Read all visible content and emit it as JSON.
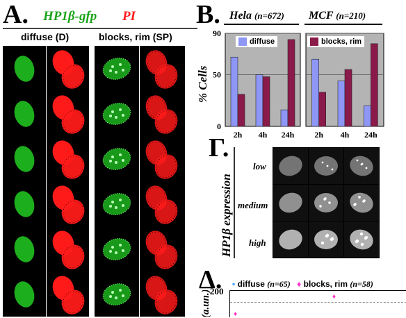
{
  "panelA": {
    "letter": "A.",
    "title_green": "HP1β-gfp",
    "title_red": "PI",
    "col1_label": "diffuse (D)",
    "col2_label": "blocks, rim (SP)",
    "rows": 6,
    "colors": {
      "green": "#22cc22",
      "red": "#ff1a1a"
    }
  },
  "panelB": {
    "letter": "B.",
    "hela_title": "Hela",
    "hela_n": "(n=672)",
    "mcf_title": "MCF",
    "mcf_n": "(n=210)",
    "legend_diffuse": "diffuse",
    "legend_blocks": "blocks, rim",
    "ylabel": "% Cells",
    "yticks": [
      "90",
      "50",
      "0"
    ],
    "xticks": [
      "2h",
      "4h",
      "24h"
    ]
  },
  "chart_data": [
    {
      "type": "bar",
      "title": "Hela (n=672)",
      "categories": [
        "2h",
        "4h",
        "24h"
      ],
      "series": [
        {
          "name": "diffuse",
          "values": [
            67,
            50,
            16
          ],
          "color": "#8e97f6"
        },
        {
          "name": "blocks, rim",
          "values": [
            31,
            48,
            84
          ],
          "color": "#8a1a4a"
        }
      ],
      "ylabel": "% Cells",
      "ylim": [
        0,
        90
      ],
      "grid": true
    },
    {
      "type": "bar",
      "title": "MCF (n=210)",
      "categories": [
        "2h",
        "4h",
        "24h"
      ],
      "series": [
        {
          "name": "diffuse",
          "values": [
            65,
            44,
            20
          ],
          "color": "#8e97f6"
        },
        {
          "name": "blocks, rim",
          "values": [
            33,
            55,
            80
          ],
          "color": "#8a1a4a"
        }
      ],
      "ylabel": "% Cells",
      "ylim": [
        0,
        90
      ],
      "grid": true
    },
    {
      "type": "scatter",
      "series": [
        {
          "name": "diffuse",
          "n": "(n=65)",
          "color": "#3399ff",
          "points": []
        },
        {
          "name": "blocks, rim",
          "n": "(n=58)",
          "color": "#ff33cc",
          "points": []
        }
      ],
      "yticks": [
        "200"
      ],
      "ylabel_fragment": "(a.un.)"
    }
  ],
  "panelG": {
    "letter": "Г.",
    "axis_label": "HP1β expression",
    "rows": [
      "low",
      "medium",
      "high"
    ]
  },
  "panelD": {
    "letter": "Δ.",
    "legend_diffuse": "diffuse",
    "legend_diffuse_n": "(n=65)",
    "legend_blocks": "blocks, rim",
    "legend_blocks_n": "(n=58)",
    "ytick": "200",
    "ylabel_fragment": "(a.un.)"
  }
}
